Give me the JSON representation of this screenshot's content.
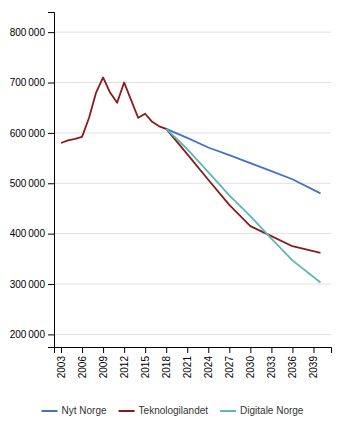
{
  "chart_data": {
    "type": "line",
    "series": [
      {
        "name": "Nyt Norge",
        "color": "#4472C4",
        "x": [
          2018,
          2021,
          2024,
          2027,
          2030,
          2033,
          2036,
          2040
        ],
        "values": [
          608000,
          590000,
          571000,
          556000,
          540000,
          524000,
          508000,
          480000
        ]
      },
      {
        "name": "Teknologilandet",
        "color": "#8B1A1A",
        "x": [
          2003,
          2004,
          2005,
          2006,
          2007,
          2008,
          2009,
          2010,
          2011,
          2012,
          2013,
          2014,
          2015,
          2016,
          2017,
          2018,
          2021,
          2024,
          2027,
          2030,
          2033,
          2036,
          2040
        ],
        "values": [
          580000,
          585000,
          588000,
          592000,
          630000,
          680000,
          710000,
          680000,
          660000,
          700000,
          665000,
          630000,
          638000,
          622000,
          613000,
          608000,
          558000,
          507000,
          457000,
          415000,
          395000,
          375000,
          362000
        ]
      },
      {
        "name": "Digitale Norge",
        "color": "#5BB8B8",
        "x": [
          2018,
          2021,
          2024,
          2027,
          2030,
          2033,
          2036,
          2040
        ],
        "values": [
          608000,
          568000,
          522000,
          476000,
          435000,
          390000,
          347000,
          303000
        ]
      }
    ],
    "xlim": [
      2002,
      2041.5
    ],
    "xticks": [
      2003,
      2006,
      2009,
      2012,
      2015,
      2018,
      2021,
      2024,
      2027,
      2030,
      2033,
      2036,
      2039
    ],
    "ylim": [
      175000,
      840000
    ],
    "yticks": [
      {
        "value": 200000,
        "label": "200 000"
      },
      {
        "value": 300000,
        "label": "300 000"
      },
      {
        "value": 400000,
        "label": "400 000"
      },
      {
        "value": 500000,
        "label": "500 000"
      },
      {
        "value": 600000,
        "label": "600 000"
      },
      {
        "value": 700000,
        "label": "700 000"
      },
      {
        "value": 800000,
        "label": "800 000"
      }
    ],
    "grid": "y",
    "legend": "bottom"
  }
}
